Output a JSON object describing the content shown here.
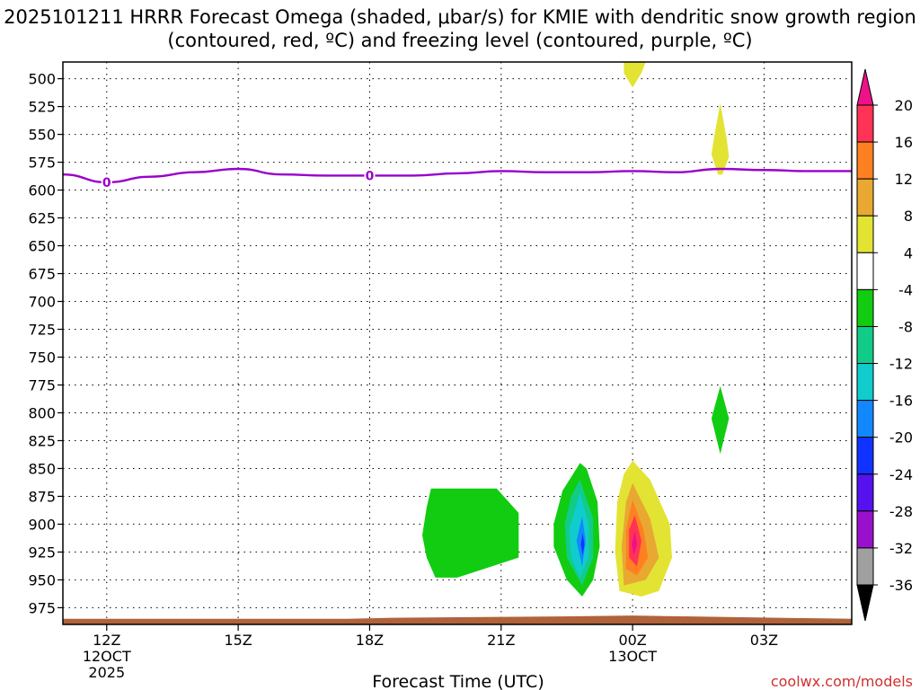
{
  "title": "2025101211 HRRR Forecast Omega (shaded, μbar/s) for KMIE with dendritic snow growth region (contoured, red, ºC) and freezing level (contoured, purple, ºC)",
  "credit": "coolwx.com/models",
  "chart_data": {
    "type": "heatmap",
    "xlabel": "Forecast Time (UTC)",
    "x_ticks": [
      {
        "hour": 0,
        "label": "12Z",
        "sub": [
          "12OCT",
          "2025"
        ]
      },
      {
        "hour": 3,
        "label": "15Z",
        "sub": []
      },
      {
        "hour": 6,
        "label": "18Z",
        "sub": []
      },
      {
        "hour": 9,
        "label": "21Z",
        "sub": []
      },
      {
        "hour": 12,
        "label": "00Z",
        "sub": [
          "13OCT"
        ]
      },
      {
        "hour": 15,
        "label": "03Z",
        "sub": []
      }
    ],
    "xlim_hours": [
      -1,
      17
    ],
    "ylim_hPa": [
      485,
      990
    ],
    "y_ticks": [
      500,
      525,
      550,
      575,
      600,
      625,
      650,
      675,
      700,
      725,
      750,
      775,
      800,
      825,
      850,
      875,
      900,
      925,
      950,
      975
    ],
    "grid": true,
    "colorbar": {
      "units": "μbar/s",
      "labels": [
        "20",
        "16",
        "12",
        "8",
        "4",
        "-4",
        "-8",
        "-12",
        "-16",
        "-20",
        "-24",
        "-28",
        "-32",
        "-36"
      ],
      "colors": [
        "#ff3355",
        "#ff8020",
        "#e8a832",
        "#e3e333",
        "#ffffff",
        "#11cc11",
        "#11cc88",
        "#11cccc",
        "#1188ff",
        "#1133ff",
        "#5511ee",
        "#9911cc",
        "#a0a0a0"
      ],
      "over_color": "#ee1188",
      "under_color": "#000000"
    },
    "freezing_level": {
      "color": "#9900cc",
      "label": "0",
      "label_hours": [
        0,
        6
      ],
      "points": [
        [
          -1,
          586
        ],
        [
          0,
          593
        ],
        [
          1,
          588
        ],
        [
          2,
          584
        ],
        [
          3,
          581
        ],
        [
          4,
          586
        ],
        [
          5,
          587
        ],
        [
          6,
          587
        ],
        [
          7,
          587
        ],
        [
          8,
          585
        ],
        [
          9,
          583
        ],
        [
          10,
          584
        ],
        [
          11,
          584
        ],
        [
          12,
          583
        ],
        [
          13,
          584
        ],
        [
          14,
          581
        ],
        [
          15,
          582
        ],
        [
          16,
          583
        ],
        [
          17,
          583
        ]
      ]
    },
    "omega_regions": [
      {
        "value": 4,
        "color": "#e3e333",
        "points": [
          [
            11.8,
            485
          ],
          [
            12.3,
            485
          ],
          [
            12.2,
            495
          ],
          [
            12.0,
            508
          ],
          [
            11.8,
            495
          ]
        ]
      },
      {
        "value": 4,
        "color": "#e3e333",
        "points": [
          [
            14.0,
            522
          ],
          [
            14.15,
            555
          ],
          [
            14.2,
            570
          ],
          [
            14.05,
            586
          ],
          [
            13.95,
            586
          ],
          [
            13.8,
            568
          ],
          [
            13.85,
            555
          ]
        ]
      },
      {
        "value": -4,
        "color": "#11cc11",
        "points": [
          [
            14.0,
            776
          ],
          [
            14.2,
            805
          ],
          [
            14.0,
            837
          ],
          [
            13.8,
            805
          ]
        ]
      },
      {
        "value": -4,
        "color": "#11cc11",
        "points": [
          [
            7.4,
            868
          ],
          [
            8.9,
            868
          ],
          [
            9.4,
            890
          ],
          [
            9.4,
            930
          ],
          [
            8.0,
            948
          ],
          [
            7.5,
            948
          ],
          [
            7.3,
            930
          ],
          [
            7.2,
            910
          ],
          [
            7.3,
            885
          ]
        ]
      },
      {
        "value": -4,
        "color": "#11cc11",
        "points": [
          [
            10.8,
            845
          ],
          [
            10.95,
            850
          ],
          [
            11.2,
            880
          ],
          [
            11.25,
            920
          ],
          [
            11.1,
            950
          ],
          [
            10.85,
            965
          ],
          [
            10.5,
            950
          ],
          [
            10.2,
            920
          ],
          [
            10.2,
            900
          ],
          [
            10.4,
            870
          ]
        ]
      },
      {
        "value": -8,
        "color": "#11cc88",
        "points": [
          [
            10.8,
            860
          ],
          [
            11.1,
            895
          ],
          [
            11.1,
            930
          ],
          [
            10.85,
            955
          ],
          [
            10.5,
            930
          ],
          [
            10.45,
            900
          ],
          [
            10.6,
            875
          ]
        ]
      },
      {
        "value": -12,
        "color": "#11cccc",
        "points": [
          [
            10.8,
            872
          ],
          [
            11.0,
            900
          ],
          [
            11.0,
            930
          ],
          [
            10.8,
            948
          ],
          [
            10.6,
            930
          ],
          [
            10.55,
            905
          ]
        ]
      },
      {
        "value": -16,
        "color": "#1188ff",
        "points": [
          [
            10.85,
            893
          ],
          [
            10.93,
            915
          ],
          [
            10.85,
            938
          ],
          [
            10.72,
            915
          ]
        ]
      },
      {
        "value": -24,
        "color": "#1133ff",
        "points": [
          [
            10.86,
            908
          ],
          [
            10.9,
            918
          ],
          [
            10.86,
            928
          ],
          [
            10.82,
            918
          ]
        ]
      },
      {
        "value": 4,
        "color": "#e3e333",
        "points": [
          [
            12.0,
            843
          ],
          [
            12.4,
            860
          ],
          [
            12.85,
            900
          ],
          [
            12.9,
            930
          ],
          [
            12.6,
            960
          ],
          [
            12.2,
            965
          ],
          [
            11.7,
            960
          ],
          [
            11.6,
            925
          ],
          [
            11.65,
            880
          ],
          [
            11.8,
            855
          ]
        ]
      },
      {
        "value": 8,
        "color": "#e8a832",
        "points": [
          [
            12.0,
            863
          ],
          [
            12.4,
            895
          ],
          [
            12.6,
            930
          ],
          [
            12.3,
            950
          ],
          [
            11.8,
            955
          ],
          [
            11.75,
            920
          ],
          [
            11.85,
            880
          ]
        ]
      },
      {
        "value": 12,
        "color": "#ff8020",
        "points": [
          [
            12.0,
            878
          ],
          [
            12.25,
            905
          ],
          [
            12.35,
            930
          ],
          [
            12.1,
            946
          ],
          [
            11.85,
            940
          ],
          [
            11.85,
            905
          ]
        ]
      },
      {
        "value": 16,
        "color": "#ff3355",
        "points": [
          [
            12.05,
            892
          ],
          [
            12.2,
            915
          ],
          [
            12.1,
            938
          ],
          [
            11.92,
            930
          ],
          [
            11.92,
            905
          ]
        ]
      },
      {
        "value": 20,
        "color": "#ee1188",
        "points": [
          [
            12.05,
            906
          ],
          [
            12.1,
            918
          ],
          [
            12.03,
            928
          ],
          [
            11.98,
            918
          ]
        ]
      }
    ],
    "surface": {
      "color": "#b0623a",
      "points": [
        [
          -1,
          990
        ],
        [
          -1,
          985
        ],
        [
          5.5,
          985
        ],
        [
          6.5,
          984
        ],
        [
          10.0,
          983
        ],
        [
          12.0,
          982
        ],
        [
          13.5,
          983
        ],
        [
          17,
          985
        ],
        [
          17,
          990
        ]
      ]
    }
  }
}
